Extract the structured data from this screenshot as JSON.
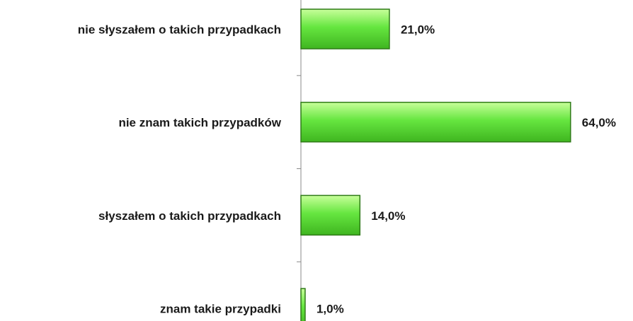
{
  "chart_data": {
    "type": "bar",
    "orientation": "horizontal",
    "categories": [
      "nie słyszałem o takich przypadkach",
      "nie znam takich przypadków",
      "słyszałem o takich przypadkach",
      "znam takie przypadki"
    ],
    "values": [
      21,
      64,
      14,
      1
    ],
    "value_labels": [
      "21,0%",
      "64,0%",
      "14,0%",
      "1,0%"
    ],
    "color": "#66e640"
  }
}
